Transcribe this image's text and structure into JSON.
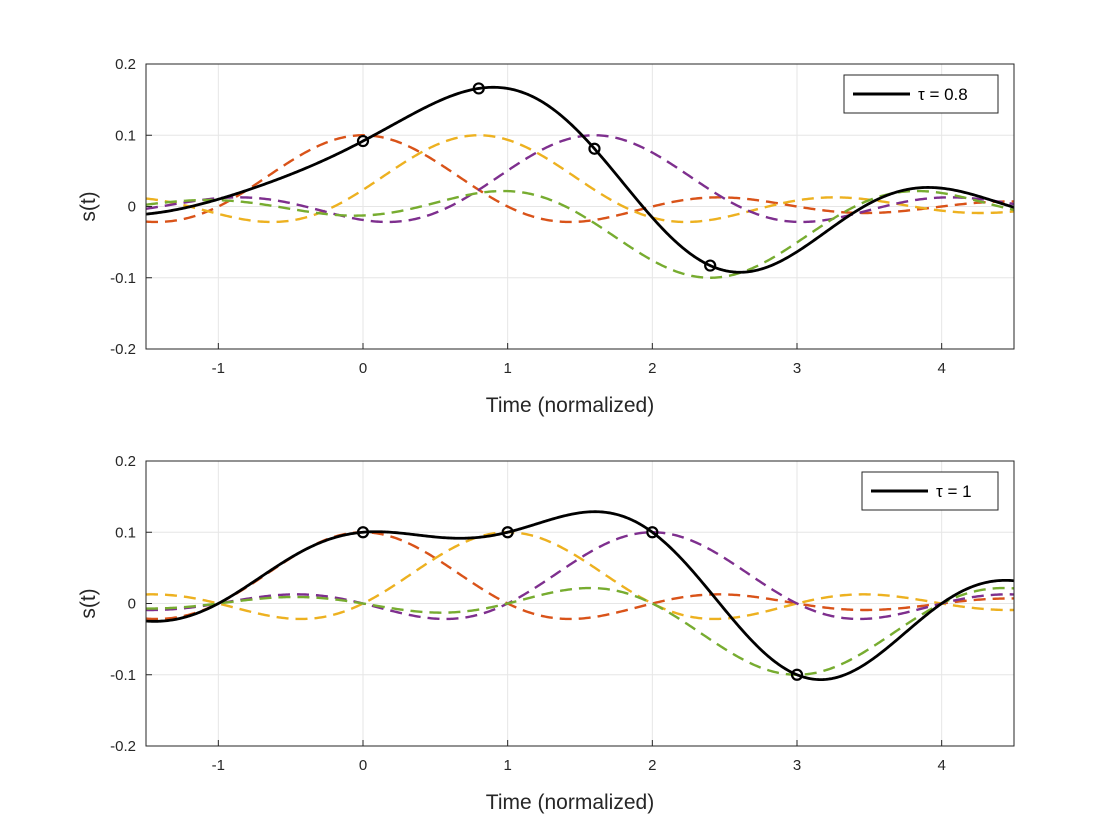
{
  "chart_data": [
    {
      "type": "line",
      "legend": {
        "label": "τ = 0.8",
        "placement": "top-right"
      },
      "tau": 0.8,
      "xlabel": "Time (normalized)",
      "ylabel": "s(t)",
      "xlim": [
        -1.5,
        4.5
      ],
      "ylim": [
        -0.2,
        0.2
      ],
      "xticks": [
        -1,
        0,
        1,
        2,
        3,
        4
      ],
      "yticks": [
        -0.2,
        -0.1,
        0,
        0.1,
        0.2
      ],
      "grid": true,
      "symbol_amplitudes": [
        0.1,
        0.1,
        0.1,
        -0.1
      ],
      "symbol_times": [
        0,
        0.8,
        1.6,
        2.4
      ],
      "marker_points": [
        {
          "x": 0,
          "y": 0.094
        },
        {
          "x": 0.8,
          "y": 0.167
        },
        {
          "x": 1.6,
          "y": 0.08
        },
        {
          "x": 2.4,
          "y": -0.085
        }
      ],
      "series": [
        {
          "name": "sum",
          "style": "solid",
          "color": "#000000"
        },
        {
          "name": "pulse 1",
          "style": "dashed",
          "color": "#D95319"
        },
        {
          "name": "pulse 2",
          "style": "dashed",
          "color": "#EDB120"
        },
        {
          "name": "pulse 3",
          "style": "dashed",
          "color": "#7E2F8E"
        },
        {
          "name": "pulse 4",
          "style": "dashed",
          "color": "#77AC30"
        }
      ]
    },
    {
      "type": "line",
      "legend": {
        "label": "τ = 1",
        "placement": "top-right"
      },
      "tau": 1,
      "xlabel": "Time (normalized)",
      "ylabel": "s(t)",
      "xlim": [
        -1.5,
        4.5
      ],
      "ylim": [
        -0.2,
        0.2
      ],
      "xticks": [
        -1,
        0,
        1,
        2,
        3,
        4
      ],
      "yticks": [
        -0.2,
        -0.1,
        0,
        0.1,
        0.2
      ],
      "grid": true,
      "symbol_amplitudes": [
        0.1,
        0.1,
        0.1,
        -0.1
      ],
      "symbol_times": [
        0,
        1,
        2,
        3
      ],
      "marker_points": [
        {
          "x": 0,
          "y": 0.1
        },
        {
          "x": 1,
          "y": 0.1
        },
        {
          "x": 2,
          "y": 0.1
        },
        {
          "x": 3,
          "y": -0.1
        }
      ],
      "series": [
        {
          "name": "sum",
          "style": "solid",
          "color": "#000000"
        },
        {
          "name": "pulse 1",
          "style": "dashed",
          "color": "#D95319"
        },
        {
          "name": "pulse 2",
          "style": "dashed",
          "color": "#EDB120"
        },
        {
          "name": "pulse 3",
          "style": "dashed",
          "color": "#7E2F8E"
        },
        {
          "name": "pulse 4",
          "style": "dashed",
          "color": "#77AC30"
        }
      ]
    }
  ]
}
